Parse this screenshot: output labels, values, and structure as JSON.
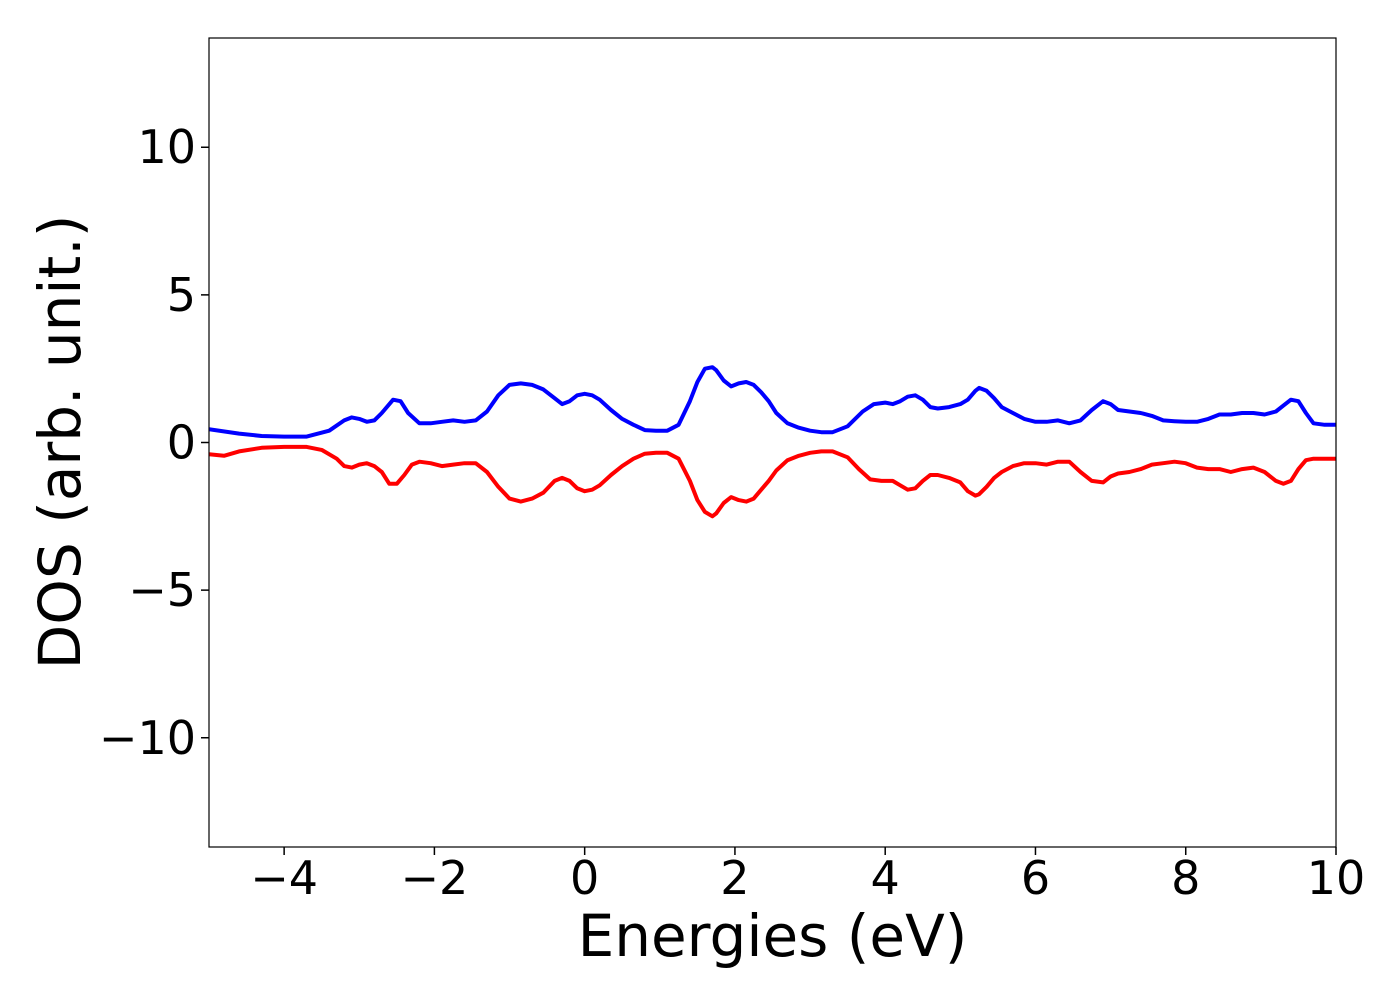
{
  "chart_data": {
    "type": "line",
    "title": "",
    "xlabel": "Energies (eV)",
    "ylabel": "DOS (arb. unit.)",
    "xlim": [
      -5,
      10
    ],
    "ylim": [
      -13.7,
      13.7
    ],
    "grid": false,
    "x_ticks": [
      -4,
      -2,
      0,
      2,
      4,
      6,
      8,
      10
    ],
    "x_tick_labels": [
      "−4",
      "−2",
      "0",
      "2",
      "4",
      "6",
      "8",
      "10"
    ],
    "y_ticks": [
      -10,
      -5,
      0,
      5,
      10
    ],
    "y_tick_labels": [
      "−10",
      "−5",
      "0",
      "5",
      "10"
    ],
    "series": [
      {
        "color": "#0000ff",
        "x": [
          -5,
          -4.6,
          -4.3,
          -4.0,
          -3.7,
          -3.4,
          -3.2,
          -3.1,
          -3.0,
          -2.9,
          -2.8,
          -2.7,
          -2.55,
          -2.45,
          -2.35,
          -2.2,
          -2.05,
          -1.9,
          -1.75,
          -1.6,
          -1.45,
          -1.3,
          -1.15,
          -1.0,
          -0.85,
          -0.7,
          -0.55,
          -0.4,
          -0.3,
          -0.2,
          -0.1,
          0.0,
          0.1,
          0.2,
          0.35,
          0.5,
          0.65,
          0.8,
          0.95,
          1.1,
          1.25,
          1.4,
          1.5,
          1.6,
          1.7,
          1.75,
          1.85,
          1.95,
          2.05,
          2.15,
          2.25,
          2.35,
          2.45,
          2.55,
          2.7,
          2.85,
          3.0,
          3.15,
          3.3,
          3.5,
          3.7,
          3.85,
          4.0,
          4.1,
          4.2,
          4.3,
          4.4,
          4.5,
          4.6,
          4.7,
          4.85,
          5.0,
          5.1,
          5.2,
          5.25,
          5.35,
          5.45,
          5.55,
          5.7,
          5.85,
          6.0,
          6.15,
          6.3,
          6.45,
          6.6,
          6.75,
          6.9,
          7.0,
          7.1,
          7.25,
          7.4,
          7.55,
          7.7,
          7.85,
          8.0,
          8.15,
          8.3,
          8.45,
          8.6,
          8.75,
          8.9,
          9.05,
          9.2,
          9.3,
          9.4,
          9.5,
          9.6,
          9.7,
          9.85,
          10.0
        ],
        "values": [
          0.45,
          0.3,
          0.22,
          0.2,
          0.2,
          0.4,
          0.75,
          0.85,
          0.8,
          0.7,
          0.75,
          1.0,
          1.45,
          1.4,
          1.0,
          0.65,
          0.65,
          0.7,
          0.75,
          0.7,
          0.75,
          1.05,
          1.6,
          1.95,
          2.0,
          1.95,
          1.8,
          1.5,
          1.3,
          1.4,
          1.6,
          1.65,
          1.6,
          1.45,
          1.1,
          0.8,
          0.6,
          0.42,
          0.4,
          0.4,
          0.6,
          1.4,
          2.05,
          2.5,
          2.55,
          2.45,
          2.1,
          1.9,
          2.0,
          2.05,
          1.95,
          1.7,
          1.4,
          1.0,
          0.65,
          0.5,
          0.4,
          0.35,
          0.35,
          0.55,
          1.05,
          1.3,
          1.35,
          1.3,
          1.4,
          1.55,
          1.6,
          1.45,
          1.2,
          1.15,
          1.2,
          1.3,
          1.45,
          1.75,
          1.85,
          1.75,
          1.5,
          1.2,
          1.0,
          0.8,
          0.7,
          0.7,
          0.75,
          0.65,
          0.75,
          1.1,
          1.4,
          1.3,
          1.1,
          1.05,
          1.0,
          0.9,
          0.75,
          0.72,
          0.7,
          0.7,
          0.8,
          0.95,
          0.95,
          1.0,
          1.0,
          0.95,
          1.05,
          1.25,
          1.45,
          1.4,
          1.0,
          0.65,
          0.6,
          0.6
        ]
      },
      {
        "color": "#ff0000",
        "x": [
          -5,
          -4.8,
          -4.6,
          -4.3,
          -4.0,
          -3.7,
          -3.5,
          -3.3,
          -3.2,
          -3.1,
          -3.0,
          -2.9,
          -2.8,
          -2.7,
          -2.6,
          -2.5,
          -2.4,
          -2.3,
          -2.2,
          -2.05,
          -1.9,
          -1.75,
          -1.6,
          -1.45,
          -1.3,
          -1.15,
          -1.0,
          -0.85,
          -0.7,
          -0.55,
          -0.4,
          -0.3,
          -0.2,
          -0.1,
          0.0,
          0.1,
          0.2,
          0.35,
          0.5,
          0.65,
          0.8,
          0.95,
          1.1,
          1.25,
          1.4,
          1.5,
          1.6,
          1.7,
          1.75,
          1.85,
          1.95,
          2.05,
          2.15,
          2.25,
          2.35,
          2.45,
          2.55,
          2.7,
          2.85,
          3.0,
          3.15,
          3.3,
          3.5,
          3.65,
          3.8,
          3.95,
          4.1,
          4.2,
          4.3,
          4.4,
          4.5,
          4.6,
          4.7,
          4.85,
          5.0,
          5.1,
          5.2,
          5.25,
          5.35,
          5.45,
          5.55,
          5.7,
          5.85,
          6.0,
          6.15,
          6.3,
          6.45,
          6.6,
          6.75,
          6.9,
          7.0,
          7.1,
          7.25,
          7.4,
          7.55,
          7.7,
          7.85,
          8.0,
          8.15,
          8.3,
          8.45,
          8.6,
          8.75,
          8.9,
          9.05,
          9.2,
          9.3,
          9.4,
          9.5,
          9.6,
          9.7,
          9.85,
          10.0
        ],
        "values": [
          -0.4,
          -0.45,
          -0.3,
          -0.18,
          -0.15,
          -0.15,
          -0.25,
          -0.55,
          -0.8,
          -0.85,
          -0.75,
          -0.7,
          -0.8,
          -1.0,
          -1.4,
          -1.4,
          -1.1,
          -0.75,
          -0.65,
          -0.7,
          -0.8,
          -0.75,
          -0.7,
          -0.7,
          -1.0,
          -1.5,
          -1.9,
          -2.0,
          -1.9,
          -1.7,
          -1.3,
          -1.2,
          -1.3,
          -1.55,
          -1.65,
          -1.6,
          -1.45,
          -1.1,
          -0.8,
          -0.55,
          -0.38,
          -0.35,
          -0.35,
          -0.55,
          -1.3,
          -1.95,
          -2.35,
          -2.5,
          -2.4,
          -2.05,
          -1.85,
          -1.95,
          -2.0,
          -1.9,
          -1.6,
          -1.3,
          -0.95,
          -0.6,
          -0.45,
          -0.35,
          -0.3,
          -0.3,
          -0.5,
          -0.9,
          -1.25,
          -1.3,
          -1.3,
          -1.45,
          -1.6,
          -1.55,
          -1.3,
          -1.1,
          -1.1,
          -1.2,
          -1.35,
          -1.65,
          -1.8,
          -1.75,
          -1.5,
          -1.2,
          -1.0,
          -0.8,
          -0.7,
          -0.7,
          -0.75,
          -0.65,
          -0.65,
          -1.0,
          -1.3,
          -1.35,
          -1.15,
          -1.05,
          -1.0,
          -0.9,
          -0.75,
          -0.7,
          -0.65,
          -0.7,
          -0.85,
          -0.9,
          -0.9,
          -1.0,
          -0.9,
          -0.85,
          -1.0,
          -1.3,
          -1.4,
          -1.3,
          -0.9,
          -0.6,
          -0.55,
          -0.55,
          -0.55
        ]
      }
    ]
  }
}
